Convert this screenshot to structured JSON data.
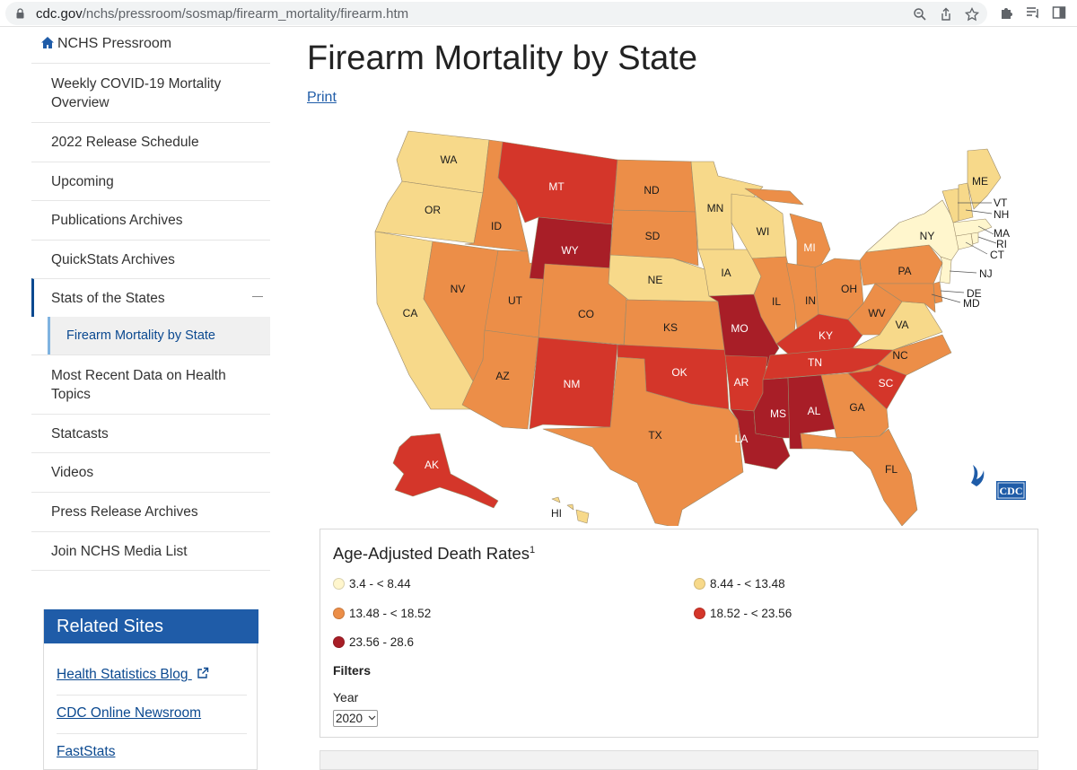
{
  "browser": {
    "url_host": "cdc.gov",
    "url_path": "/nchs/pressroom/sosmap/firearm_mortality/firearm.htm"
  },
  "sidebar": {
    "home": "NCHS Pressroom",
    "items": [
      {
        "label": "Weekly COVID-19 Mortality Overview"
      },
      {
        "label": "2022 Release Schedule"
      },
      {
        "label": "Upcoming"
      },
      {
        "label": "Publications Archives"
      },
      {
        "label": "QuickStats Archives"
      },
      {
        "label": "Stats of the States"
      },
      {
        "label": "Firearm Mortality by State"
      },
      {
        "label": "Most Recent Data on Health Topics"
      },
      {
        "label": "Statcasts"
      },
      {
        "label": "Videos"
      },
      {
        "label": "Press Release Archives"
      },
      {
        "label": "Join NCHS Media List"
      }
    ]
  },
  "related": {
    "title": "Related Sites",
    "links": [
      "Health Statistics Blog",
      "CDC Online Newsroom",
      "FastStats"
    ]
  },
  "main": {
    "title": "Firearm Mortality by State",
    "print": "Print"
  },
  "colors": {
    "c1": "#fff6cd",
    "c2": "#f7d98a",
    "c3": "#ec8e48",
    "c4": "#d4362a",
    "c5": "#a81e27"
  },
  "map": {
    "states": {
      "WA": "WA",
      "OR": "OR",
      "CA": "CA",
      "ID": "ID",
      "NV": "NV",
      "AZ": "AZ",
      "UT": "UT",
      "MT": "MT",
      "WY": "WY",
      "CO": "CO",
      "NM": "NM",
      "ND": "ND",
      "SD": "SD",
      "NE": "NE",
      "KS": "KS",
      "OK": "OK",
      "TX": "TX",
      "MN": "MN",
      "IA": "IA",
      "MO": "MO",
      "AR": "AR",
      "LA": "LA",
      "WI": "WI",
      "IL": "IL",
      "MI": "MI",
      "IN": "IN",
      "OH": "OH",
      "KY": "KY",
      "TN": "TN",
      "MS": "MS",
      "AL": "AL",
      "GA": "GA",
      "FL": "FL",
      "SC": "SC",
      "NC": "NC",
      "VA": "VA",
      "WV": "WV",
      "PA": "PA",
      "NY": "NY",
      "ME": "ME",
      "VT": "VT",
      "NH": "NH",
      "MA": "MA",
      "RI": "RI",
      "CT": "CT",
      "NJ": "NJ",
      "DE": "DE",
      "MD": "MD",
      "AK": "AK",
      "HI": "HI"
    },
    "logo": "CDC"
  },
  "legend": {
    "title": "Age-Adjusted Death Rates",
    "footnote": "1",
    "ranges": [
      "3.4 - < 8.44",
      "8.44 - < 13.48",
      "13.48 - < 18.52",
      "18.52 - < 23.56",
      "23.56 - 28.6"
    ],
    "filters_label": "Filters",
    "year_label": "Year",
    "year_value": "2020"
  }
}
